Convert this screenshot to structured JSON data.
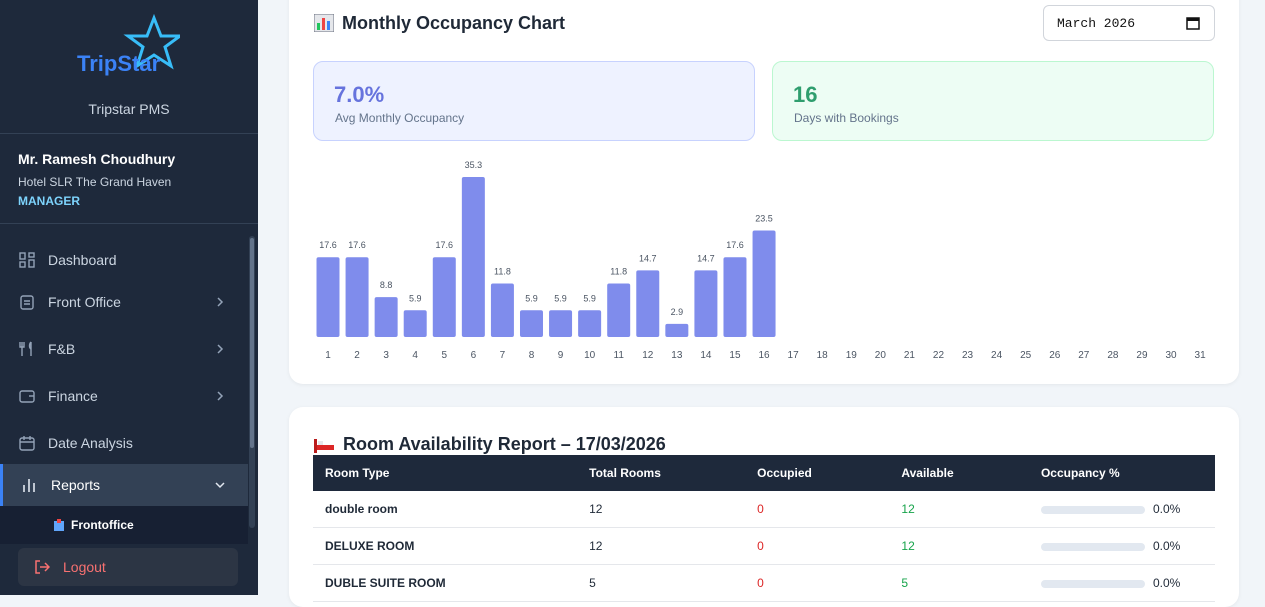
{
  "sidebar": {
    "logo": "TripStar",
    "app_name": "Tripstar PMS",
    "user": {
      "name": "Mr. Ramesh Choudhury",
      "hotel": "Hotel SLR The Grand Haven",
      "role": "MANAGER"
    },
    "menu": [
      "Dashboard",
      "Front Office",
      "F&B",
      "Finance",
      "Date Analysis",
      "Reports"
    ],
    "submenu": [
      "Frontoffice"
    ],
    "logout": "Logout"
  },
  "occupancy": {
    "title": "Monthly Occupancy Chart",
    "month": "March 2026",
    "stats": [
      {
        "value": "7.0%",
        "label": "Avg Monthly Occupancy"
      },
      {
        "value": "16",
        "label": "Days with Bookings"
      }
    ]
  },
  "chart_data": {
    "type": "bar",
    "color": "#7f8cec",
    "categories": [
      "1",
      "2",
      "3",
      "4",
      "5",
      "6",
      "7",
      "8",
      "9",
      "10",
      "11",
      "12",
      "13",
      "14",
      "15",
      "16",
      "17",
      "18",
      "19",
      "20",
      "21",
      "22",
      "23",
      "24",
      "25",
      "26",
      "27",
      "28",
      "29",
      "30",
      "31"
    ],
    "values": [
      17.6,
      17.6,
      8.8,
      5.9,
      17.6,
      35.3,
      11.8,
      5.9,
      5.9,
      5.9,
      11.8,
      14.7,
      2.9,
      14.7,
      17.6,
      23.5,
      null,
      null,
      null,
      null,
      null,
      null,
      null,
      null,
      null,
      null,
      null,
      null,
      null,
      null,
      null
    ]
  },
  "availability": {
    "title": "Room Availability Report – 17/03/2026",
    "columns": [
      "Room Type",
      "Total Rooms",
      "Occupied",
      "Available",
      "Occupancy %"
    ],
    "rows": [
      [
        "double room",
        "12",
        "0",
        "12",
        "0.0%"
      ],
      [
        "DELUXE ROOM",
        "12",
        "0",
        "12",
        "0.0%"
      ],
      [
        "DUBLE SUITE ROOM",
        "5",
        "0",
        "5",
        "0.0%"
      ]
    ]
  }
}
